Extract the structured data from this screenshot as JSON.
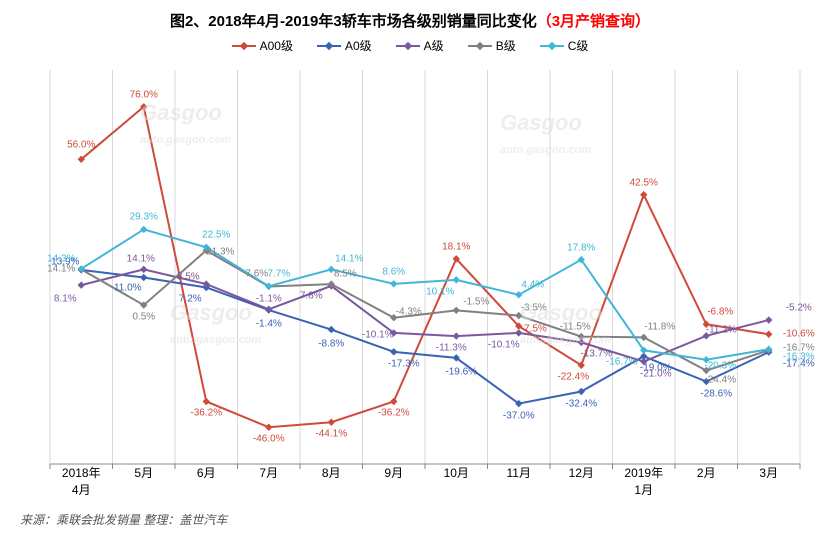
{
  "title_prefix": "图2、2018年4月-2019年3轿车市场各级别销量同比变化",
  "title_suffix": "（3月产销查询）",
  "legend": [
    "A00级",
    "A0级",
    "A级",
    "B级",
    "C级"
  ],
  "colors": {
    "A00级": "#d04a3a",
    "A0级": "#3a62b5",
    "A级": "#7a589e",
    "B级": "#808080",
    "C级": "#42b6d8",
    "grid": "#d9d9d9",
    "axis": "#888888",
    "title": "#222222",
    "red": "#ff0000",
    "bg": "#ffffff"
  },
  "marker": "diamond",
  "line_width": 2,
  "marker_size": 6,
  "xlabels": [
    "2018年\n4月",
    "5月",
    "6月",
    "7月",
    "8月",
    "9月",
    "10月",
    "11月",
    "12月",
    "2019年\n1月",
    "2月",
    "3月"
  ],
  "ylim": [
    -60,
    90
  ],
  "ytick_step": 10,
  "series": {
    "A00级": [
      56.0,
      76.0,
      -36.2,
      -46.0,
      -44.1,
      -36.2,
      18.1,
      -7.5,
      -22.4,
      42.5,
      -6.8,
      -10.6
    ],
    "A0级": [
      13.9,
      11.0,
      7.2,
      -1.4,
      -8.8,
      -17.3,
      -19.6,
      -37.0,
      -32.4,
      -19.0,
      -28.6,
      -17.4
    ],
    "A级": [
      8.1,
      14.1,
      8.5,
      -1.1,
      7.8,
      -10.1,
      -11.3,
      -10.1,
      -13.7,
      -21.0,
      -11.2,
      -5.2
    ],
    "B级": [
      14.1,
      0.5,
      21.3,
      7.6,
      8.5,
      -4.3,
      -1.5,
      -3.5,
      -11.5,
      -11.8,
      -24.4,
      -16.7
    ],
    "C级": [
      14.3,
      29.3,
      22.5,
      7.7,
      14.1,
      8.6,
      10.1,
      4.4,
      17.8,
      -16.7,
      -20.3,
      -16.3
    ]
  },
  "label_offsets": {
    "A00级": [
      [
        0,
        -14
      ],
      [
        0,
        -12
      ],
      [
        0,
        12
      ],
      [
        0,
        12
      ],
      [
        0,
        12
      ],
      [
        0,
        12
      ],
      [
        0,
        -12
      ],
      [
        15,
        3
      ],
      [
        -8,
        12
      ],
      [
        0,
        -12
      ],
      [
        14,
        -12
      ],
      [
        30,
        0
      ]
    ],
    "A0级": [
      [
        -16,
        -8
      ],
      [
        -16,
        10
      ],
      [
        -16,
        12
      ],
      [
        0,
        14
      ],
      [
        0,
        14
      ],
      [
        10,
        12
      ],
      [
        5,
        14
      ],
      [
        0,
        12
      ],
      [
        0,
        12
      ],
      [
        12,
        12
      ],
      [
        10,
        12
      ],
      [
        30,
        12
      ]
    ],
    "A级": [
      [
        -16,
        14
      ],
      [
        -3,
        -10
      ],
      [
        -18,
        -7
      ],
      [
        0,
        -10
      ],
      [
        -20,
        10
      ],
      [
        -16,
        2
      ],
      [
        -5,
        12
      ],
      [
        -15,
        12
      ],
      [
        15,
        12
      ],
      [
        12,
        12
      ],
      [
        15,
        -6
      ],
      [
        30,
        -12
      ]
    ],
    "B级": [
      [
        -20,
        0
      ],
      [
        0,
        12
      ],
      [
        14,
        2
      ],
      [
        -12,
        -12
      ],
      [
        14,
        -10
      ],
      [
        15,
        -6
      ],
      [
        20,
        -8
      ],
      [
        15,
        -8
      ],
      [
        -6,
        -10
      ],
      [
        16,
        -10
      ],
      [
        14,
        10
      ],
      [
        30,
        -2
      ]
    ],
    "C级": [
      [
        -20,
        -10
      ],
      [
        0,
        -12
      ],
      [
        10,
        -12
      ],
      [
        10,
        -12
      ],
      [
        18,
        -10
      ],
      [
        0,
        -12
      ],
      [
        -16,
        12
      ],
      [
        14,
        -10
      ],
      [
        0,
        -12
      ],
      [
        -22,
        12
      ],
      [
        14,
        6
      ],
      [
        30,
        8
      ]
    ]
  },
  "source": "来源：乘联会批发销量  整理：盖世汽车",
  "watermark_text": "Gasgoo\nauto.gasgoo.com",
  "title_fontsize": 15,
  "legend_fontsize": 12,
  "label_fontsize": 10,
  "axis_fontsize": 12,
  "source_fontsize": 12
}
